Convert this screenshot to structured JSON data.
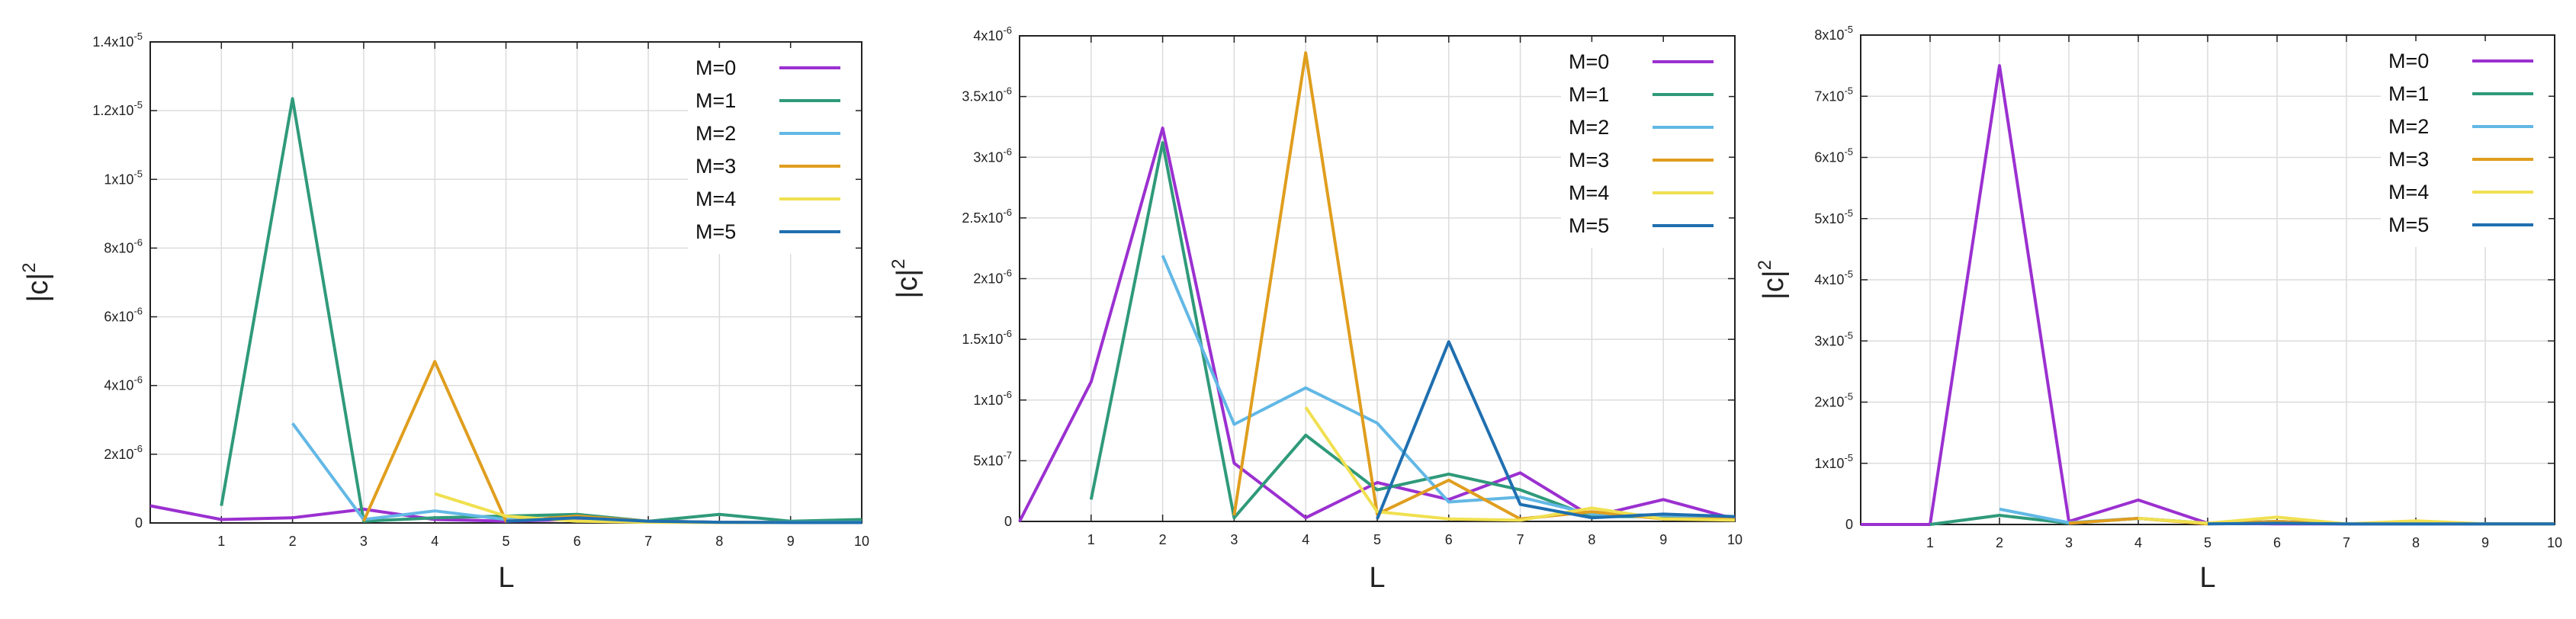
{
  "colors": {
    "M0": "#9b30d0",
    "M1": "#2f9a7a",
    "M2": "#62b8e5",
    "M3": "#e09e1e",
    "M4": "#f0e050",
    "M5": "#1f6fb0",
    "grid": "#dcdcdc",
    "frame": "#222222"
  },
  "chart_data": [
    {
      "type": "line",
      "xlabel": "L",
      "ylabel": "|c|",
      "ylabel_sup": "2",
      "xlim": [
        0,
        10
      ],
      "ylim": [
        0,
        1.4e-05
      ],
      "grid": true,
      "legend_position": "top-right",
      "x_ticks": [
        1,
        2,
        3,
        4,
        5,
        6,
        7,
        8,
        9,
        10
      ],
      "x_tick_labels": [
        "1",
        "2",
        "3",
        "4",
        "5",
        "6",
        "7",
        "8",
        "9",
        "10"
      ],
      "y_ticks": [
        0,
        2e-06,
        4e-06,
        6e-06,
        8e-06,
        1e-05,
        1.2e-05,
        1.4e-05
      ],
      "y_tick_labels": [
        {
          "base": "0",
          "exp": ""
        },
        {
          "base": "2x10",
          "exp": "-6"
        },
        {
          "base": "4x10",
          "exp": "-6"
        },
        {
          "base": "6x10",
          "exp": "-6"
        },
        {
          "base": "8x10",
          "exp": "-6"
        },
        {
          "base": "1x10",
          "exp": "-5"
        },
        {
          "base": "1.2x10",
          "exp": "-5"
        },
        {
          "base": "1.4x10",
          "exp": "-5"
        }
      ],
      "series": [
        {
          "name": "M=0",
          "color_key": "M0",
          "x": [
            0,
            1,
            2,
            3,
            4,
            5,
            6,
            7,
            8,
            9,
            10
          ],
          "y": [
            5e-07,
            1e-07,
            1.5e-07,
            4e-07,
            1e-07,
            5e-08,
            1e-07,
            5e-08,
            2e-08,
            1e-08,
            2e-08
          ]
        },
        {
          "name": "M=1",
          "color_key": "M1",
          "x": [
            1,
            2,
            3,
            4,
            5,
            6,
            7,
            8,
            9,
            10
          ],
          "y": [
            5e-07,
            1.235e-05,
            5e-08,
            1.5e-07,
            2e-07,
            2.5e-07,
            5e-08,
            2.5e-07,
            5e-08,
            1e-07
          ]
        },
        {
          "name": "M=2",
          "color_key": "M2",
          "x": [
            2,
            3,
            4,
            5,
            6,
            7,
            8,
            9,
            10
          ],
          "y": [
            2.9e-06,
            1e-07,
            3.5e-07,
            1e-07,
            1.5e-07,
            5e-08,
            2e-08,
            2e-08,
            2e-08
          ]
        },
        {
          "name": "M=3",
          "color_key": "M3",
          "x": [
            3,
            4,
            5,
            6,
            7,
            8,
            9,
            10
          ],
          "y": [
            5e-08,
            4.7e-06,
            5e-08,
            2e-07,
            5e-08,
            2e-08,
            1e-08,
            1e-08
          ]
        },
        {
          "name": "M=4",
          "color_key": "M4",
          "x": [
            4,
            5,
            6,
            7,
            8,
            9,
            10
          ],
          "y": [
            8.5e-07,
            2e-07,
            5e-08,
            2e-08,
            1e-08,
            1e-08,
            1e-08
          ]
        },
        {
          "name": "M=5",
          "color_key": "M5",
          "x": [
            5,
            6,
            7,
            8,
            9,
            10
          ],
          "y": [
            5e-08,
            1.5e-07,
            5e-08,
            2e-08,
            1e-08,
            1e-08
          ]
        }
      ]
    },
    {
      "type": "line",
      "xlabel": "L",
      "ylabel": "|c|",
      "ylabel_sup": "2",
      "xlim": [
        0,
        10
      ],
      "ylim": [
        0,
        4e-06
      ],
      "grid": true,
      "legend_position": "top-right",
      "x_ticks": [
        1,
        2,
        3,
        4,
        5,
        6,
        7,
        8,
        9,
        10
      ],
      "x_tick_labels": [
        "1",
        "2",
        "3",
        "4",
        "5",
        "6",
        "7",
        "8",
        "9",
        "10"
      ],
      "y_ticks": [
        0,
        5e-07,
        1e-06,
        1.5e-06,
        2e-06,
        2.5e-06,
        3e-06,
        3.5e-06,
        4e-06
      ],
      "y_tick_labels": [
        {
          "base": "0",
          "exp": ""
        },
        {
          "base": "5x10",
          "exp": "-7"
        },
        {
          "base": "1x10",
          "exp": "-6"
        },
        {
          "base": "1.5x10",
          "exp": "-6"
        },
        {
          "base": "2x10",
          "exp": "-6"
        },
        {
          "base": "2.5x10",
          "exp": "-6"
        },
        {
          "base": "3x10",
          "exp": "-6"
        },
        {
          "base": "3.5x10",
          "exp": "-6"
        },
        {
          "base": "4x10",
          "exp": "-6"
        }
      ],
      "series": [
        {
          "name": "M=0",
          "color_key": "M0",
          "x": [
            0,
            1,
            2,
            3,
            4,
            5,
            6,
            7,
            8,
            9,
            10
          ],
          "y": [
            0,
            1.15e-06,
            3.24e-06,
            4.8e-07,
            3e-08,
            3.2e-07,
            1.8e-07,
            4e-07,
            4e-08,
            1.8e-07,
            2e-08
          ]
        },
        {
          "name": "M=1",
          "color_key": "M1",
          "x": [
            1,
            2,
            3,
            4,
            5,
            6,
            7,
            8,
            9,
            10
          ],
          "y": [
            1.8e-07,
            3.12e-06,
            3e-08,
            7.1e-07,
            2.6e-07,
            3.9e-07,
            2.6e-07,
            4e-08,
            4e-08,
            2e-08
          ]
        },
        {
          "name": "M=2",
          "color_key": "M2",
          "x": [
            2,
            3,
            4,
            5,
            6,
            7,
            8,
            9,
            10
          ],
          "y": [
            2.19e-06,
            8e-07,
            1.1e-06,
            8.1e-07,
            1.6e-07,
            2e-07,
            6e-08,
            5e-08,
            3e-08
          ]
        },
        {
          "name": "M=3",
          "color_key": "M3",
          "x": [
            3,
            4,
            5,
            6,
            7,
            8,
            9,
            10
          ],
          "y": [
            5e-08,
            3.86e-06,
            6e-08,
            3.4e-07,
            2e-08,
            8e-08,
            2e-08,
            2e-08
          ]
        },
        {
          "name": "M=4",
          "color_key": "M4",
          "x": [
            4,
            5,
            6,
            7,
            8,
            9,
            10
          ],
          "y": [
            9.4e-07,
            8e-08,
            2e-08,
            1e-08,
            1.1e-07,
            2e-08,
            1e-08
          ]
        },
        {
          "name": "M=5",
          "color_key": "M5",
          "x": [
            5,
            6,
            7,
            8,
            9,
            10
          ],
          "y": [
            2e-08,
            1.48e-06,
            1.4e-07,
            3e-08,
            6e-08,
            4e-08
          ]
        }
      ]
    },
    {
      "type": "line",
      "xlabel": "L",
      "ylabel": "|c|",
      "ylabel_sup": "2",
      "xlim": [
        0,
        10
      ],
      "ylim": [
        0,
        8e-05
      ],
      "grid": true,
      "legend_position": "top-right",
      "x_ticks": [
        1,
        2,
        3,
        4,
        5,
        6,
        7,
        8,
        9,
        10
      ],
      "x_tick_labels": [
        "1",
        "2",
        "3",
        "4",
        "5",
        "6",
        "7",
        "8",
        "9",
        "10"
      ],
      "y_ticks": [
        0,
        1e-05,
        2e-05,
        3e-05,
        4e-05,
        5e-05,
        6e-05,
        7e-05,
        8e-05
      ],
      "y_tick_labels": [
        {
          "base": "0",
          "exp": ""
        },
        {
          "base": "1x10",
          "exp": "-5"
        },
        {
          "base": "2x10",
          "exp": "-5"
        },
        {
          "base": "3x10",
          "exp": "-5"
        },
        {
          "base": "4x10",
          "exp": "-5"
        },
        {
          "base": "5x10",
          "exp": "-5"
        },
        {
          "base": "6x10",
          "exp": "-5"
        },
        {
          "base": "7x10",
          "exp": "-5"
        },
        {
          "base": "8x10",
          "exp": "-5"
        }
      ],
      "series": [
        {
          "name": "M=0",
          "color_key": "M0",
          "x": [
            0,
            1,
            2,
            3,
            4,
            5,
            6,
            7,
            8,
            9,
            10
          ],
          "y": [
            0,
            0,
            7.5e-05,
            5e-07,
            4e-06,
            2e-07,
            1e-07,
            1e-07,
            1e-07,
            1e-07,
            1e-07
          ]
        },
        {
          "name": "M=1",
          "color_key": "M1",
          "x": [
            1,
            2,
            3,
            4,
            5,
            6,
            7,
            8,
            9,
            10
          ],
          "y": [
            0,
            1.5e-06,
            2e-07,
            1e-06,
            2e-07,
            5e-07,
            1e-07,
            2e-07,
            1e-07,
            1e-07
          ]
        },
        {
          "name": "M=2",
          "color_key": "M2",
          "x": [
            2,
            3,
            4,
            5,
            6,
            7,
            8,
            9,
            10
          ],
          "y": [
            2.5e-06,
            3e-07,
            1e-06,
            2e-07,
            5e-07,
            1e-07,
            1e-07,
            1e-07,
            1e-07
          ]
        },
        {
          "name": "M=3",
          "color_key": "M3",
          "x": [
            3,
            4,
            5,
            6,
            7,
            8,
            9,
            10
          ],
          "y": [
            2e-07,
            1e-06,
            1e-07,
            5e-07,
            1e-07,
            3e-07,
            1e-07,
            1e-07
          ]
        },
        {
          "name": "M=4",
          "color_key": "M4",
          "x": [
            4,
            5,
            6,
            7,
            8,
            9,
            10
          ],
          "y": [
            1e-06,
            2e-07,
            1.2e-06,
            1e-07,
            6e-07,
            1e-07,
            1e-07
          ]
        },
        {
          "name": "M=5",
          "color_key": "M5",
          "x": [
            5,
            6,
            7,
            8,
            9,
            10
          ],
          "y": [
            1e-07,
            2e-07,
            1e-07,
            1e-07,
            1e-07,
            1e-07
          ]
        }
      ]
    }
  ]
}
